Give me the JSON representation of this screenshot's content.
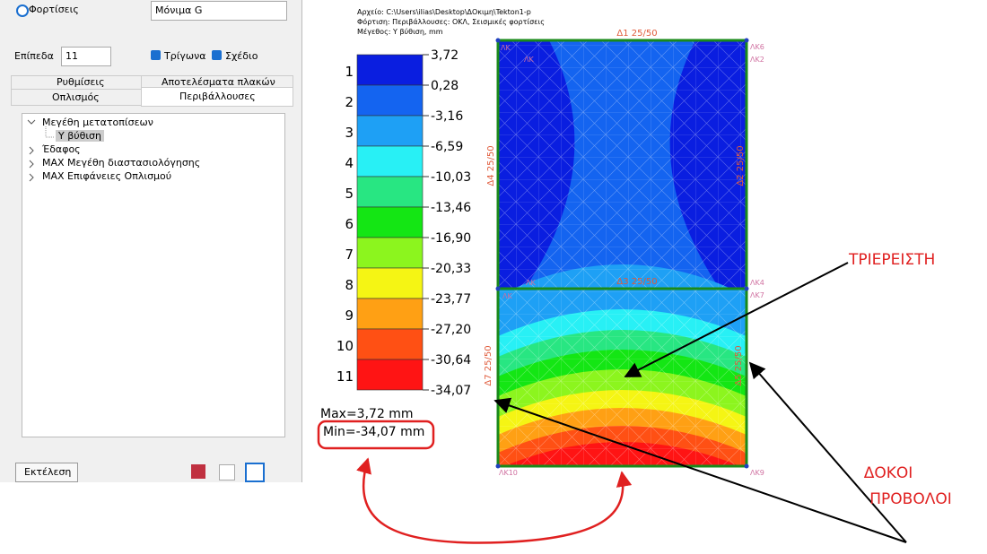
{
  "panel": {
    "load_radio": "Φορτίσεις",
    "load_select": "Μόνιμα G",
    "levels_label": "Επίπεδα",
    "levels_select": "11",
    "check_triangles": "Τρίγωνα",
    "check_drawing": "Σχέδιο",
    "tabs_back": [
      "Ρυθμίσεις",
      "Αποτελέσματα πλακών"
    ],
    "tabs_front": [
      "Οπλισμός",
      "Περιβάλλουσες"
    ],
    "tree": [
      "Μεγέθη μετατοπίσεων",
      "Υ βύθιση",
      "Έδαφος",
      "MAX Μεγέθη διαστασιολόγησης",
      "MAX Επιφάνειες Οπλισμού"
    ],
    "run_button": "Εκτέλεση"
  },
  "drawing": {
    "info": [
      "Αρχείο: C:\\Users\\ilias\\Desktop\\ΔΟκιμη\\Tekton1-p",
      "Φόρτιση: Περιβάλλουσες: ΟΚΛ, Σεισμικές φορτίσεις",
      "Μέγεθος: Υ βύθιση, mm"
    ],
    "legend": {
      "levels": [
        "1",
        "2",
        "3",
        "4",
        "5",
        "6",
        "7",
        "8",
        "9",
        "10",
        "11"
      ],
      "colors": [
        "#0a1ee0",
        "#1464f0",
        "#1ea0f5",
        "#28f0f5",
        "#28e682",
        "#14e614",
        "#8cf51e",
        "#f5f514",
        "#ffa014",
        "#ff5014",
        "#ff1414"
      ],
      "bounds": [
        "3,72",
        "0,28",
        "-3,16",
        "-6,59",
        "-10,03",
        "-13,46",
        "-16,90",
        "-20,33",
        "-23,77",
        "-27,20",
        "-30,64",
        "-34,07"
      ]
    },
    "max": "Max=3,72 mm",
    "min": "Min=-34,07 mm",
    "beams": [
      "Δ1 25/50",
      "Δ3 25/50",
      "Δ4 25/50",
      "Δ2 25/50",
      "Δ7 25/50",
      "Δ5 25/50"
    ],
    "nodes": [
      "ΛΚ",
      "ΛΚ",
      "ΛΚ6",
      "ΛΚ2",
      "ΛΚ",
      "ΛΚ4",
      "ΛΚ",
      "ΛΚ7",
      "ΛΚ10",
      "ΛΚ9"
    ]
  },
  "annotations": {
    "support": "ΤΡΙΕΡΕΙΣΤΗ",
    "beams_1": "ΔΟΚΟΙ",
    "beams_2": "ΠΡΟΒΟΛΟΙ"
  }
}
